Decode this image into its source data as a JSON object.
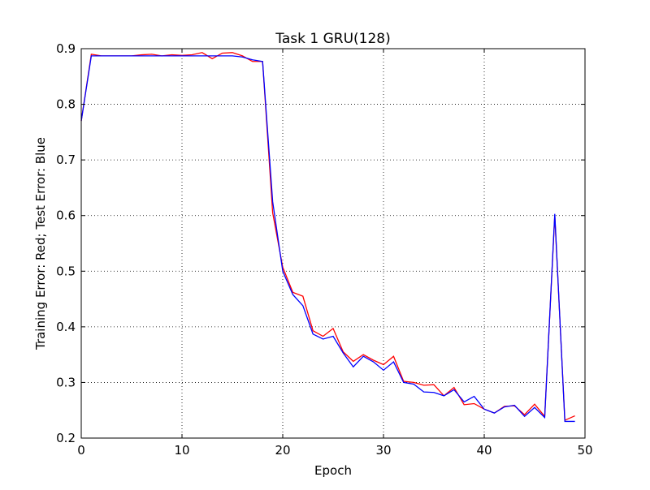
{
  "chart_data": {
    "type": "line",
    "title": "Task 1 GRU(128)",
    "xlabel": "Epoch",
    "ylabel": "Training Error: Red; Test Error: Blue",
    "xlim": [
      0,
      50
    ],
    "ylim": [
      0.2,
      0.9
    ],
    "grid": true,
    "legend": "none",
    "x_ticks": [
      0,
      10,
      20,
      30,
      40,
      50
    ],
    "x_tick_labels": [
      "0",
      "10",
      "20",
      "30",
      "40",
      "50"
    ],
    "y_ticks": [
      0.2,
      0.3,
      0.4,
      0.5,
      0.6,
      0.7,
      0.8,
      0.9
    ],
    "y_tick_labels": [
      "0.2",
      "0.3",
      "0.4",
      "0.5",
      "0.6",
      "0.7",
      "0.8",
      "0.9"
    ],
    "x": [
      0,
      1,
      2,
      3,
      4,
      5,
      6,
      7,
      8,
      9,
      10,
      11,
      12,
      13,
      14,
      15,
      16,
      17,
      18,
      19,
      20,
      21,
      22,
      23,
      24,
      25,
      26,
      27,
      28,
      29,
      30,
      31,
      32,
      33,
      34,
      35,
      36,
      37,
      38,
      39,
      40,
      41,
      42,
      43,
      44,
      45,
      46,
      47,
      48,
      49
    ],
    "series": [
      {
        "color": "#ff0000",
        "values": [
          0.77,
          0.89,
          0.887,
          0.887,
          0.887,
          0.887,
          0.889,
          0.89,
          0.887,
          0.889,
          0.888,
          0.889,
          0.893,
          0.882,
          0.892,
          0.893,
          0.887,
          0.877,
          0.877,
          0.605,
          0.507,
          0.462,
          0.455,
          0.393,
          0.383,
          0.397,
          0.355,
          0.338,
          0.35,
          0.34,
          0.332,
          0.347,
          0.302,
          0.3,
          0.295,
          0.296,
          0.276,
          0.291,
          0.26,
          0.262,
          0.252,
          0.245,
          0.257,
          0.258,
          0.242,
          0.261,
          0.239,
          0.6,
          0.232,
          0.24
        ]
      },
      {
        "color": "#0000ff",
        "values": [
          0.77,
          0.887,
          0.887,
          0.887,
          0.887,
          0.887,
          0.887,
          0.887,
          0.887,
          0.887,
          0.887,
          0.887,
          0.887,
          0.887,
          0.887,
          0.887,
          0.885,
          0.88,
          0.877,
          0.625,
          0.5,
          0.458,
          0.438,
          0.387,
          0.378,
          0.383,
          0.353,
          0.328,
          0.347,
          0.337,
          0.322,
          0.337,
          0.3,
          0.297,
          0.283,
          0.282,
          0.276,
          0.287,
          0.265,
          0.275,
          0.252,
          0.245,
          0.256,
          0.259,
          0.239,
          0.255,
          0.237,
          0.603,
          0.23,
          0.23
        ]
      }
    ]
  }
}
